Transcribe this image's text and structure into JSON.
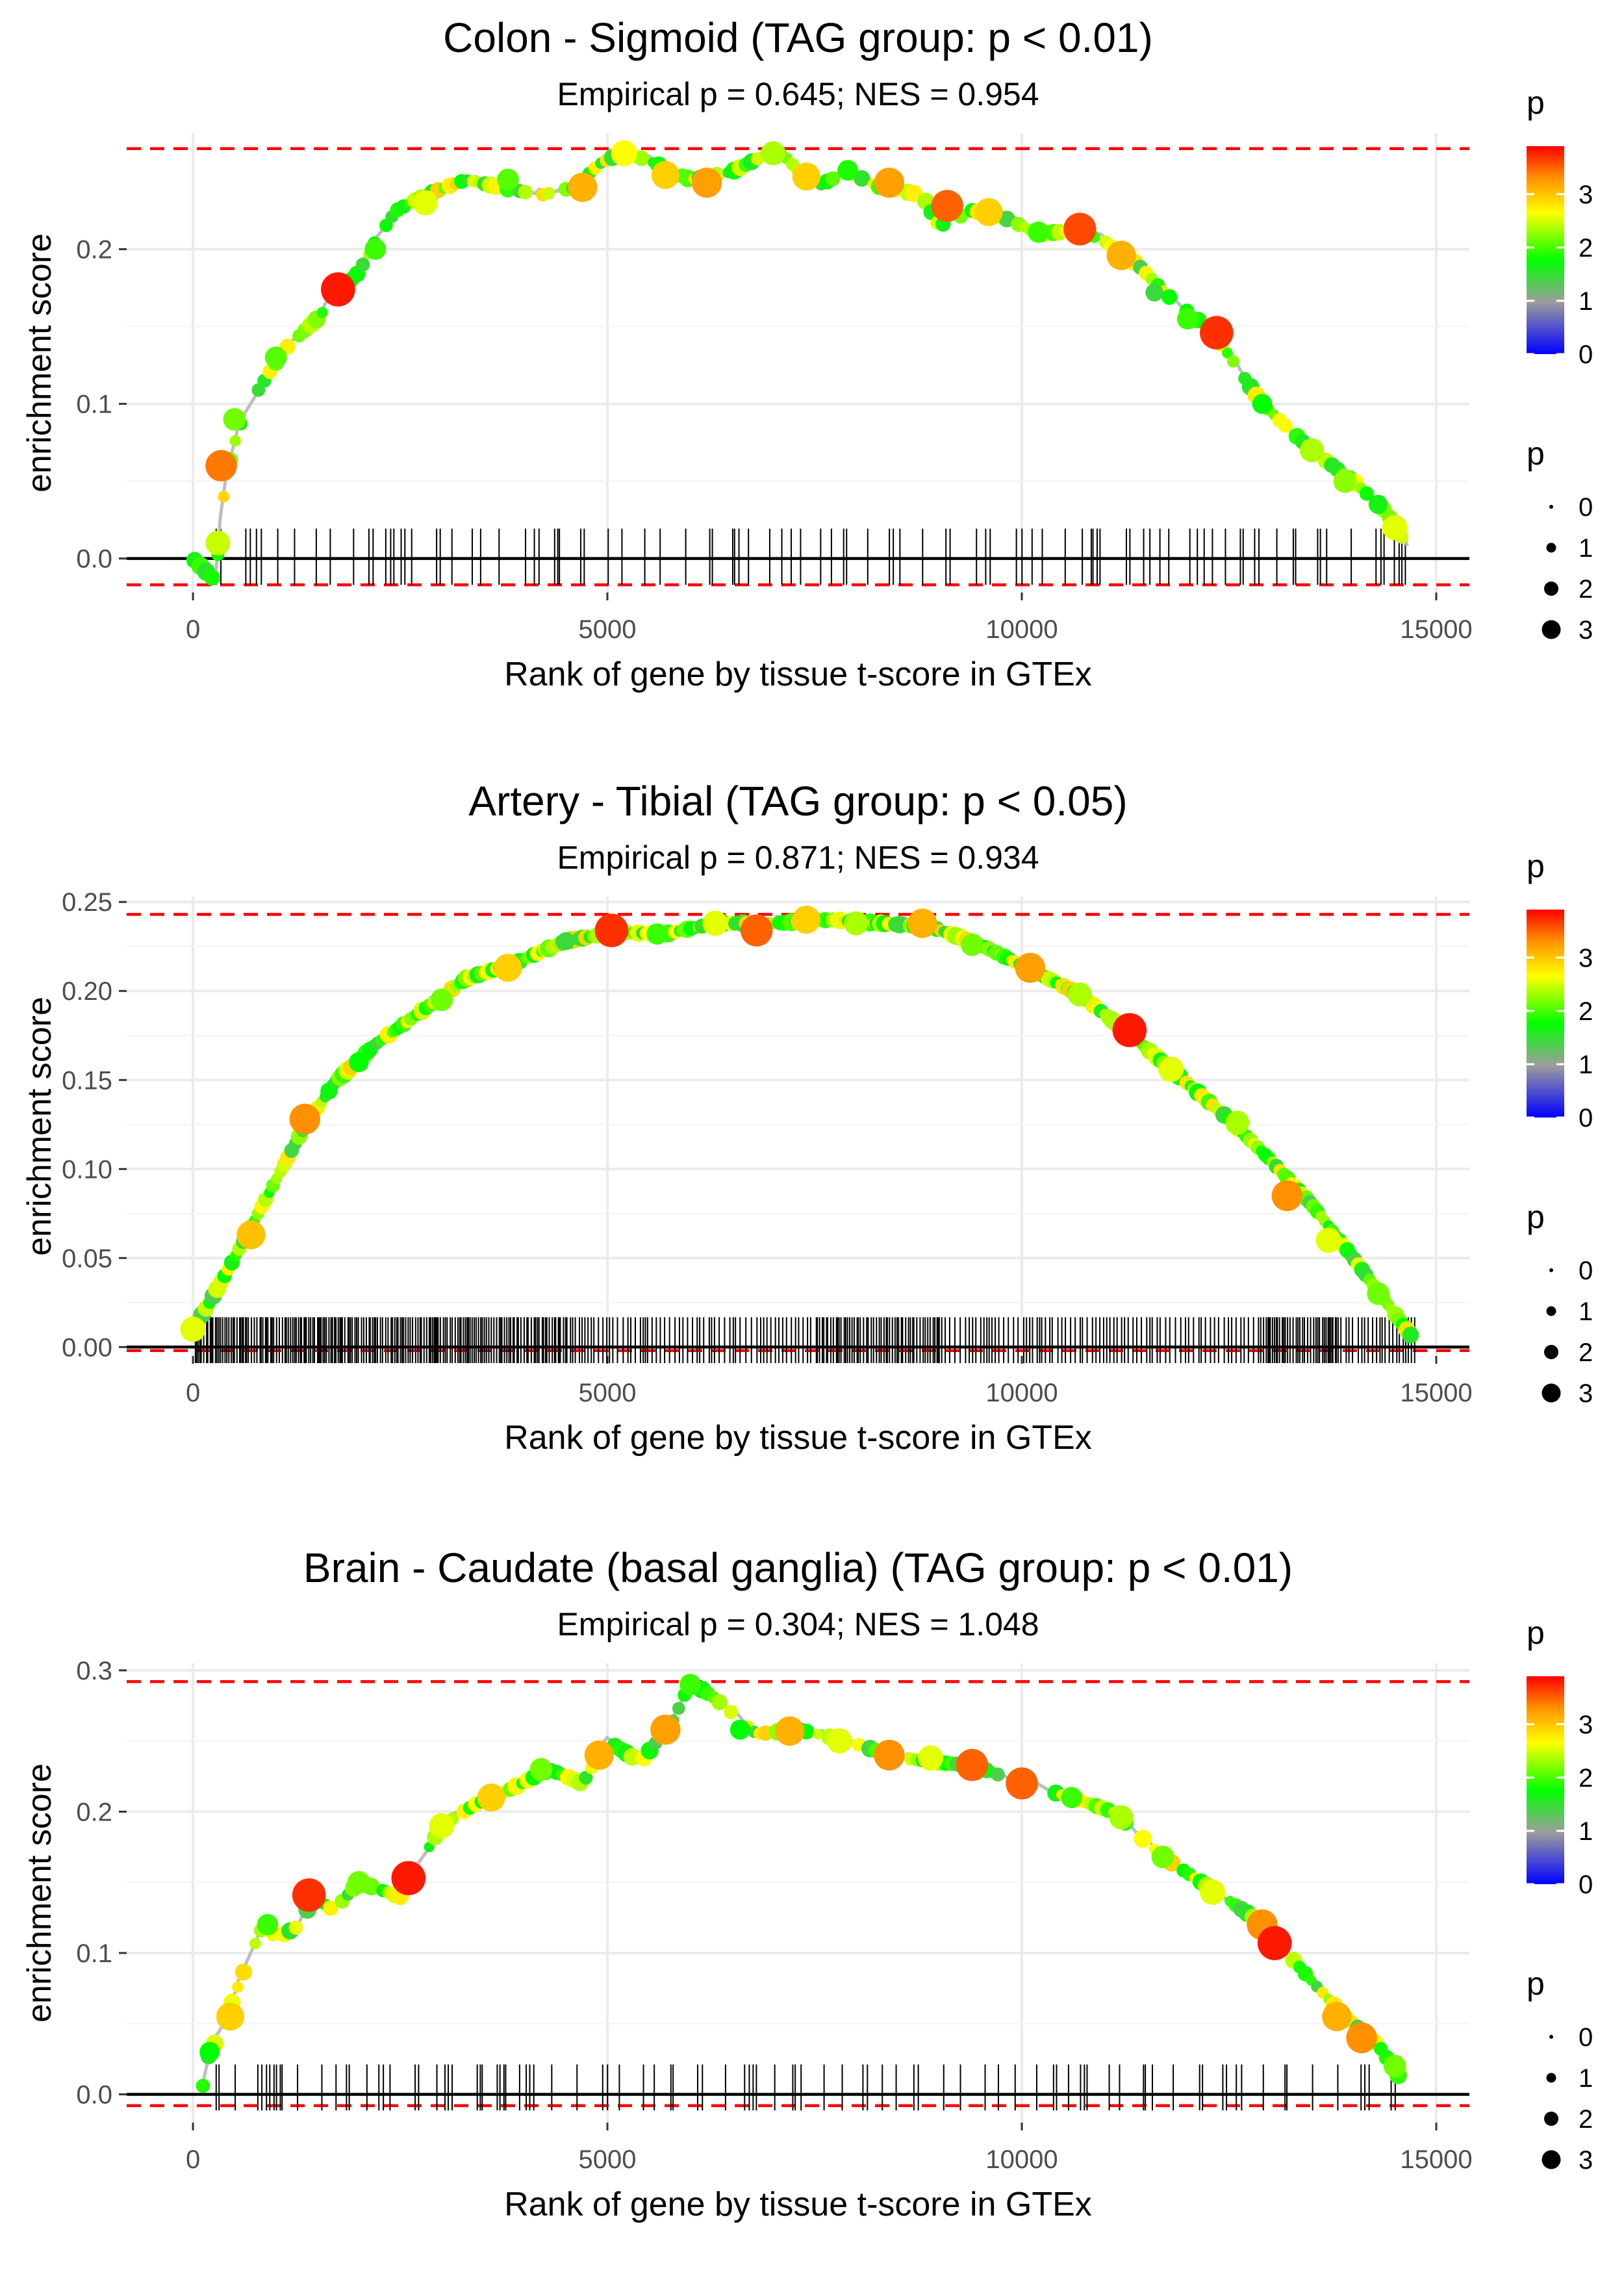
{
  "chart_data": [
    {
      "type": "line",
      "title": "Colon - Sigmoid (TAG group: p < 0.01)",
      "subtitle": "Empirical p = 0.645; NES = 0.954",
      "xlabel": "Rank of gene by tissue t-score in GTEx",
      "ylabel": "enrichment score",
      "xlim": [
        -800,
        15400
      ],
      "ylim": [
        -0.022,
        0.275
      ],
      "x_ticks": [
        0,
        5000,
        10000,
        15000
      ],
      "x_tick_labels": [
        "0",
        "5000",
        "10000",
        "15000"
      ],
      "y_ticks": [
        0.0,
        0.1,
        0.2
      ],
      "y_tick_labels": [
        "0.0",
        "0.1",
        "0.2"
      ],
      "max_es": 0.265,
      "min_es": -0.017,
      "n_ranks": 14650,
      "es_curve": [
        [
          0,
          0
        ],
        [
          280,
          -0.015
        ],
        [
          320,
          0.02
        ],
        [
          420,
          0.06
        ],
        [
          560,
          0.085
        ],
        [
          800,
          0.11
        ],
        [
          1100,
          0.135
        ],
        [
          1500,
          0.155
        ],
        [
          1750,
          0.172
        ],
        [
          2000,
          0.185
        ],
        [
          2200,
          0.205
        ],
        [
          2450,
          0.225
        ],
        [
          2800,
          0.235
        ],
        [
          3300,
          0.245
        ],
        [
          3700,
          0.24
        ],
        [
          4200,
          0.235
        ],
        [
          4600,
          0.24
        ],
        [
          4900,
          0.255
        ],
        [
          5200,
          0.263
        ],
        [
          5600,
          0.255
        ],
        [
          6000,
          0.245
        ],
        [
          6500,
          0.25
        ],
        [
          7050,
          0.265
        ],
        [
          7500,
          0.24
        ],
        [
          7900,
          0.25
        ],
        [
          8300,
          0.24
        ],
        [
          8800,
          0.235
        ],
        [
          9000,
          0.215
        ],
        [
          9400,
          0.225
        ],
        [
          9800,
          0.22
        ],
        [
          10200,
          0.21
        ],
        [
          10700,
          0.212
        ],
        [
          11000,
          0.205
        ],
        [
          11400,
          0.19
        ],
        [
          11800,
          0.168
        ],
        [
          12300,
          0.147
        ],
        [
          12900,
          0.1
        ],
        [
          13500,
          0.07
        ],
        [
          14000,
          0.05
        ],
        [
          14400,
          0.03
        ],
        [
          14650,
          0.008
        ]
      ],
      "points": [
        [
          300,
          0.01,
          2.5
        ],
        [
          340,
          0.06,
          3.5
        ],
        [
          500,
          0.09,
          2.2
        ],
        [
          1000,
          0.13,
          2.1
        ],
        [
          1750,
          0.174,
          3.9
        ],
        [
          2200,
          0.2,
          2.0
        ],
        [
          2800,
          0.23,
          2.6
        ],
        [
          3800,
          0.245,
          2.1
        ],
        [
          4700,
          0.24,
          3.2
        ],
        [
          5200,
          0.262,
          2.7
        ],
        [
          5700,
          0.248,
          3.0
        ],
        [
          6200,
          0.243,
          3.3
        ],
        [
          7000,
          0.262,
          2.4
        ],
        [
          7400,
          0.247,
          3.0
        ],
        [
          7900,
          0.251,
          1.9
        ],
        [
          8400,
          0.243,
          3.3
        ],
        [
          9100,
          0.228,
          3.6
        ],
        [
          9600,
          0.224,
          3.0
        ],
        [
          10200,
          0.211,
          2.0
        ],
        [
          10700,
          0.213,
          3.7
        ],
        [
          11200,
          0.196,
          3.2
        ],
        [
          11600,
          0.172,
          1.5
        ],
        [
          12000,
          0.155,
          2.0
        ],
        [
          12350,
          0.146,
          3.8
        ],
        [
          12900,
          0.1,
          1.8
        ],
        [
          13500,
          0.07,
          2.4
        ],
        [
          13900,
          0.05,
          2.3
        ],
        [
          14300,
          0.035,
          1.7
        ],
        [
          14500,
          0.02,
          2.6
        ]
      ],
      "rug_style": "sparse",
      "rug_seed": 7
    },
    {
      "type": "line",
      "title": "Artery - Tibial (TAG group: p < 0.05)",
      "subtitle": "Empirical p = 0.871; NES = 0.934",
      "xlabel": "Rank of gene by tissue t-score in GTEx",
      "ylabel": "enrichment score",
      "xlim": [
        -800,
        15400
      ],
      "ylim": [
        -0.005,
        0.253
      ],
      "x_ticks": [
        0,
        5000,
        10000,
        15000
      ],
      "x_tick_labels": [
        "0",
        "5000",
        "10000",
        "15000"
      ],
      "y_ticks": [
        0.0,
        0.05,
        0.1,
        0.15,
        0.2,
        0.25
      ],
      "y_tick_labels": [
        "0.00",
        "0.05",
        "0.10",
        "0.15",
        "0.20",
        "0.25"
      ],
      "max_es": 0.243,
      "min_es": -0.002,
      "n_ranks": 14750,
      "es_curve": [
        [
          0,
          0.01
        ],
        [
          200,
          0.025
        ],
        [
          500,
          0.05
        ],
        [
          900,
          0.085
        ],
        [
          1300,
          0.12
        ],
        [
          1700,
          0.148
        ],
        [
          2200,
          0.17
        ],
        [
          2800,
          0.19
        ],
        [
          3300,
          0.207
        ],
        [
          3900,
          0.216
        ],
        [
          4500,
          0.228
        ],
        [
          5100,
          0.233
        ],
        [
          5700,
          0.232
        ],
        [
          6300,
          0.238
        ],
        [
          7000,
          0.238
        ],
        [
          7700,
          0.24
        ],
        [
          8300,
          0.238
        ],
        [
          8900,
          0.236
        ],
        [
          9500,
          0.226
        ],
        [
          10100,
          0.212
        ],
        [
          10700,
          0.198
        ],
        [
          11300,
          0.176
        ],
        [
          11900,
          0.152
        ],
        [
          12500,
          0.128
        ],
        [
          13000,
          0.105
        ],
        [
          13500,
          0.08
        ],
        [
          14000,
          0.05
        ],
        [
          14400,
          0.025
        ],
        [
          14750,
          0.003
        ]
      ],
      "points": [
        [
          0,
          0.01,
          2.6
        ],
        [
          700,
          0.063,
          3.1
        ],
        [
          1350,
          0.128,
          3.4
        ],
        [
          2000,
          0.16,
          1.8
        ],
        [
          3000,
          0.195,
          2.2
        ],
        [
          3800,
          0.213,
          3.0
        ],
        [
          4500,
          0.228,
          1.5
        ],
        [
          5050,
          0.234,
          3.8
        ],
        [
          5600,
          0.232,
          2.0
        ],
        [
          6300,
          0.238,
          2.6
        ],
        [
          6800,
          0.234,
          3.6
        ],
        [
          7400,
          0.24,
          3.0
        ],
        [
          8000,
          0.238,
          2.4
        ],
        [
          8800,
          0.238,
          3.2
        ],
        [
          9400,
          0.226,
          2.2
        ],
        [
          10100,
          0.213,
          3.3
        ],
        [
          10700,
          0.198,
          2.4
        ],
        [
          11300,
          0.178,
          3.9
        ],
        [
          11800,
          0.156,
          2.6
        ],
        [
          12600,
          0.126,
          2.4
        ],
        [
          13200,
          0.085,
          3.4
        ],
        [
          13700,
          0.06,
          2.6
        ],
        [
          14300,
          0.03,
          2.2
        ]
      ],
      "rug_style": "dense",
      "rug_seed": 11
    },
    {
      "type": "line",
      "title": "Brain - Caudate (basal ganglia) (TAG group: p < 0.01)",
      "subtitle": "Empirical p = 0.304; NES = 1.048",
      "xlabel": "Rank of gene by tissue t-score in GTEx",
      "ylabel": "enrichment score",
      "xlim": [
        -800,
        15400
      ],
      "ylim": [
        -0.02,
        0.305
      ],
      "x_ticks": [
        0,
        5000,
        10000,
        15000
      ],
      "x_tick_labels": [
        "0",
        "5000",
        "10000",
        "15000"
      ],
      "y_ticks": [
        0.0,
        0.1,
        0.2,
        0.3
      ],
      "y_tick_labels": [
        "0.0",
        "0.1",
        "0.2",
        "0.3"
      ],
      "max_es": 0.292,
      "min_es": -0.008,
      "n_ranks": 14600,
      "es_curve": [
        [
          100,
          0.0
        ],
        [
          200,
          0.03
        ],
        [
          350,
          0.045
        ],
        [
          500,
          0.07
        ],
        [
          700,
          0.1
        ],
        [
          850,
          0.12
        ],
        [
          1000,
          0.11
        ],
        [
          1300,
          0.12
        ],
        [
          1450,
          0.14
        ],
        [
          1700,
          0.13
        ],
        [
          2000,
          0.15
        ],
        [
          2500,
          0.14
        ],
        [
          2700,
          0.16
        ],
        [
          3000,
          0.19
        ],
        [
          3400,
          0.205
        ],
        [
          3800,
          0.215
        ],
        [
          4300,
          0.23
        ],
        [
          4700,
          0.22
        ],
        [
          5000,
          0.25
        ],
        [
          5400,
          0.235
        ],
        [
          5800,
          0.265
        ],
        [
          6000,
          0.292
        ],
        [
          6300,
          0.28
        ],
        [
          6800,
          0.255
        ],
        [
          7300,
          0.258
        ],
        [
          7900,
          0.25
        ],
        [
          8400,
          0.24
        ],
        [
          8900,
          0.235
        ],
        [
          9400,
          0.233
        ],
        [
          10000,
          0.22
        ],
        [
          10600,
          0.21
        ],
        [
          11100,
          0.2
        ],
        [
          11700,
          0.168
        ],
        [
          12300,
          0.145
        ],
        [
          12800,
          0.125
        ],
        [
          13100,
          0.107
        ],
        [
          13500,
          0.08
        ],
        [
          13900,
          0.055
        ],
        [
          14300,
          0.035
        ],
        [
          14600,
          0.008
        ]
      ],
      "points": [
        [
          200,
          0.03,
          1.8
        ],
        [
          450,
          0.055,
          3.0
        ],
        [
          900,
          0.12,
          2.0
        ],
        [
          1400,
          0.141,
          3.8
        ],
        [
          2000,
          0.15,
          2.2
        ],
        [
          2600,
          0.153,
          3.9
        ],
        [
          3000,
          0.19,
          2.6
        ],
        [
          3600,
          0.21,
          3.0
        ],
        [
          4200,
          0.23,
          2.2
        ],
        [
          4900,
          0.24,
          3.2
        ],
        [
          5700,
          0.258,
          3.3
        ],
        [
          6000,
          0.29,
          2.0
        ],
        [
          6600,
          0.258,
          1.8
        ],
        [
          7200,
          0.257,
          3.2
        ],
        [
          7800,
          0.25,
          2.6
        ],
        [
          8400,
          0.24,
          3.4
        ],
        [
          8900,
          0.238,
          2.6
        ],
        [
          9400,
          0.233,
          3.6
        ],
        [
          10000,
          0.22,
          3.6
        ],
        [
          10600,
          0.21,
          2.0
        ],
        [
          11200,
          0.196,
          2.4
        ],
        [
          11700,
          0.168,
          2.2
        ],
        [
          12300,
          0.143,
          2.6
        ],
        [
          12900,
          0.12,
          3.4
        ],
        [
          13050,
          0.107,
          3.9
        ],
        [
          13800,
          0.055,
          3.2
        ],
        [
          14100,
          0.04,
          3.4
        ],
        [
          14500,
          0.02,
          2.2
        ]
      ],
      "rug_style": "sparse",
      "rug_seed": 23
    }
  ],
  "legend": {
    "color_title": "p",
    "color_tick_labels": [
      "0",
      "1",
      "2",
      "3"
    ],
    "color_stops": [
      "#0000ff",
      "#9d9d9d",
      "#00ff00",
      "#ffff00",
      "#ff9000",
      "#ff0000"
    ],
    "size_title": "p",
    "size_labels": [
      "0",
      "1",
      "2",
      "3"
    ]
  },
  "colors": {
    "panel_bg": "#ffffff",
    "grid": "#ebebeb",
    "es_line": "#bebebe",
    "max_min_line": "#ff0000",
    "zero_line": "#000000",
    "rug": "#000000",
    "text": "#000000",
    "tick_text": "#4d4d4d"
  }
}
